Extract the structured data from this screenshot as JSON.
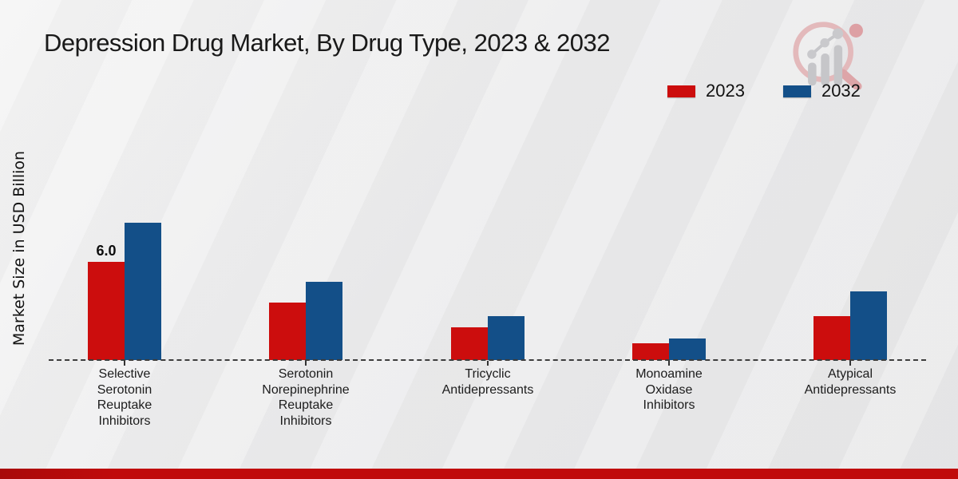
{
  "title": "Depression Drug Market, By Drug Type, 2023 & 2032",
  "ylabel": "Market Size in USD Billion",
  "legend": [
    {
      "label": "2023",
      "color": "#cc0d0d"
    },
    {
      "label": "2032",
      "color": "#134f88"
    }
  ],
  "colors": {
    "bar_2023": "#cc0d0d",
    "bar_2032": "#134f88",
    "bottom_band": "#c00b0b",
    "baseline": "#3d3d3d",
    "background": "#ebebec"
  },
  "logo": {
    "icon": "magnifier-bar-chart-logo"
  },
  "chart_data": {
    "type": "bar",
    "title": "Depression Drug Market, By Drug Type, 2023 & 2032",
    "ylabel": "Market Size in USD Billion",
    "xlabel": "",
    "categories": [
      "Selective\nSerotonin\nReuptake\nInhibitors",
      "Serotonin\nNorepinephrine\nReuptake\nInhibitors",
      "Tricyclic\nAntidepressants",
      "Monoamine\nOxidase\nInhibitors",
      "Atypical\nAntidepressants"
    ],
    "series": [
      {
        "name": "2023",
        "color": "#cc0d0d",
        "values": [
          6.0,
          3.5,
          2.0,
          1.0,
          2.7
        ],
        "labels": [
          "6.0",
          "",
          "",
          "",
          ""
        ]
      },
      {
        "name": "2032",
        "color": "#134f88",
        "values": [
          8.4,
          4.8,
          2.7,
          1.3,
          4.2
        ],
        "labels": [
          "",
          "",
          "",
          "",
          ""
        ]
      }
    ],
    "ylim": [
      0,
      9
    ],
    "grid": false,
    "axis_line": "dashed-baseline-only",
    "legend_position": "top-right"
  }
}
